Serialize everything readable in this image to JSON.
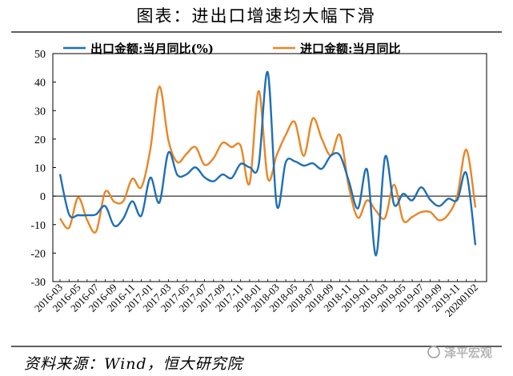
{
  "figure_title": "图表：进出口增速均大幅下滑",
  "source_text": "资料来源：Wind，恒大研究院",
  "watermark": "泽平宏观",
  "chart_data": {
    "type": "line",
    "title": "图表：进出口增速均大幅下滑",
    "xlabel": "",
    "ylabel": "",
    "ylim": [
      -30,
      50
    ],
    "yticks": [
      -30,
      -20,
      -10,
      0,
      10,
      20,
      30,
      40,
      50
    ],
    "grid": false,
    "legend_position": "top",
    "x_tick_labels": [
      "2016-03",
      "2016-05",
      "2016-07",
      "2016-09",
      "2016-11",
      "2017-01",
      "2017-03",
      "2017-05",
      "2017-07",
      "2017-09",
      "2017-11",
      "2018-01",
      "2018-03",
      "2018-05",
      "2018-07",
      "2018-09",
      "2018-11",
      "2019-01",
      "2019-03",
      "2019-05",
      "2019-07",
      "2019-09",
      "2019-11",
      "20200102"
    ],
    "x": [
      "2016-03",
      "2016-04",
      "2016-05",
      "2016-06",
      "2016-07",
      "2016-08",
      "2016-09",
      "2016-10",
      "2016-11",
      "2016-12",
      "2017-01",
      "2017-02",
      "2017-03",
      "2017-04",
      "2017-05",
      "2017-06",
      "2017-07",
      "2017-08",
      "2017-09",
      "2017-10",
      "2017-11",
      "2017-12",
      "2018-01",
      "2018-02",
      "2018-03",
      "2018-04",
      "2018-05",
      "2018-06",
      "2018-07",
      "2018-08",
      "2018-09",
      "2018-10",
      "2018-11",
      "2018-12",
      "2019-01",
      "2019-02",
      "2019-03",
      "2019-04",
      "2019-05",
      "2019-06",
      "2019-07",
      "2019-08",
      "2019-09",
      "2019-10",
      "2019-11",
      "2019-12",
      "20200102"
    ],
    "series": [
      {
        "name": "出口金额:当月同比(%)",
        "color": "#1f6fb5",
        "values": [
          7.7,
          -6.4,
          -6.7,
          -6.7,
          -6.4,
          -3.5,
          -10.4,
          -7.9,
          -1.8,
          -6.9,
          6.5,
          -2.3,
          15.3,
          7.4,
          7.6,
          10.1,
          6.6,
          5.2,
          7.6,
          6.3,
          11.3,
          10.1,
          10.9,
          43.5,
          -3.2,
          11.9,
          12.2,
          10.7,
          11.5,
          9.6,
          14.2,
          14.3,
          5.1,
          -4.3,
          9.3,
          -20.8,
          13.8,
          -3.0,
          0.8,
          -1.5,
          3.1,
          -1.3,
          -3.5,
          -0.9,
          -1.3,
          8.0,
          -17.2
        ]
      },
      {
        "name": "进口金额:当月同比",
        "color": "#e98625",
        "values": [
          -7.8,
          -11.1,
          -0.5,
          -8.4,
          -12.4,
          1.5,
          -2.0,
          -1.8,
          6.1,
          3.1,
          16.4,
          38.4,
          19.6,
          11.9,
          14.8,
          17.2,
          11.0,
          13.3,
          18.7,
          17.2,
          17.7,
          4.5,
          36.9,
          6.3,
          14.4,
          21.5,
          26.0,
          14.1,
          27.3,
          20.0,
          14.3,
          21.4,
          3.0,
          -7.6,
          -1.5,
          -5.2,
          -7.6,
          4.0,
          -8.5,
          -7.3,
          -5.6,
          -5.6,
          -8.5,
          -6.4,
          0.3,
          16.3,
          -4.0
        ]
      }
    ]
  }
}
